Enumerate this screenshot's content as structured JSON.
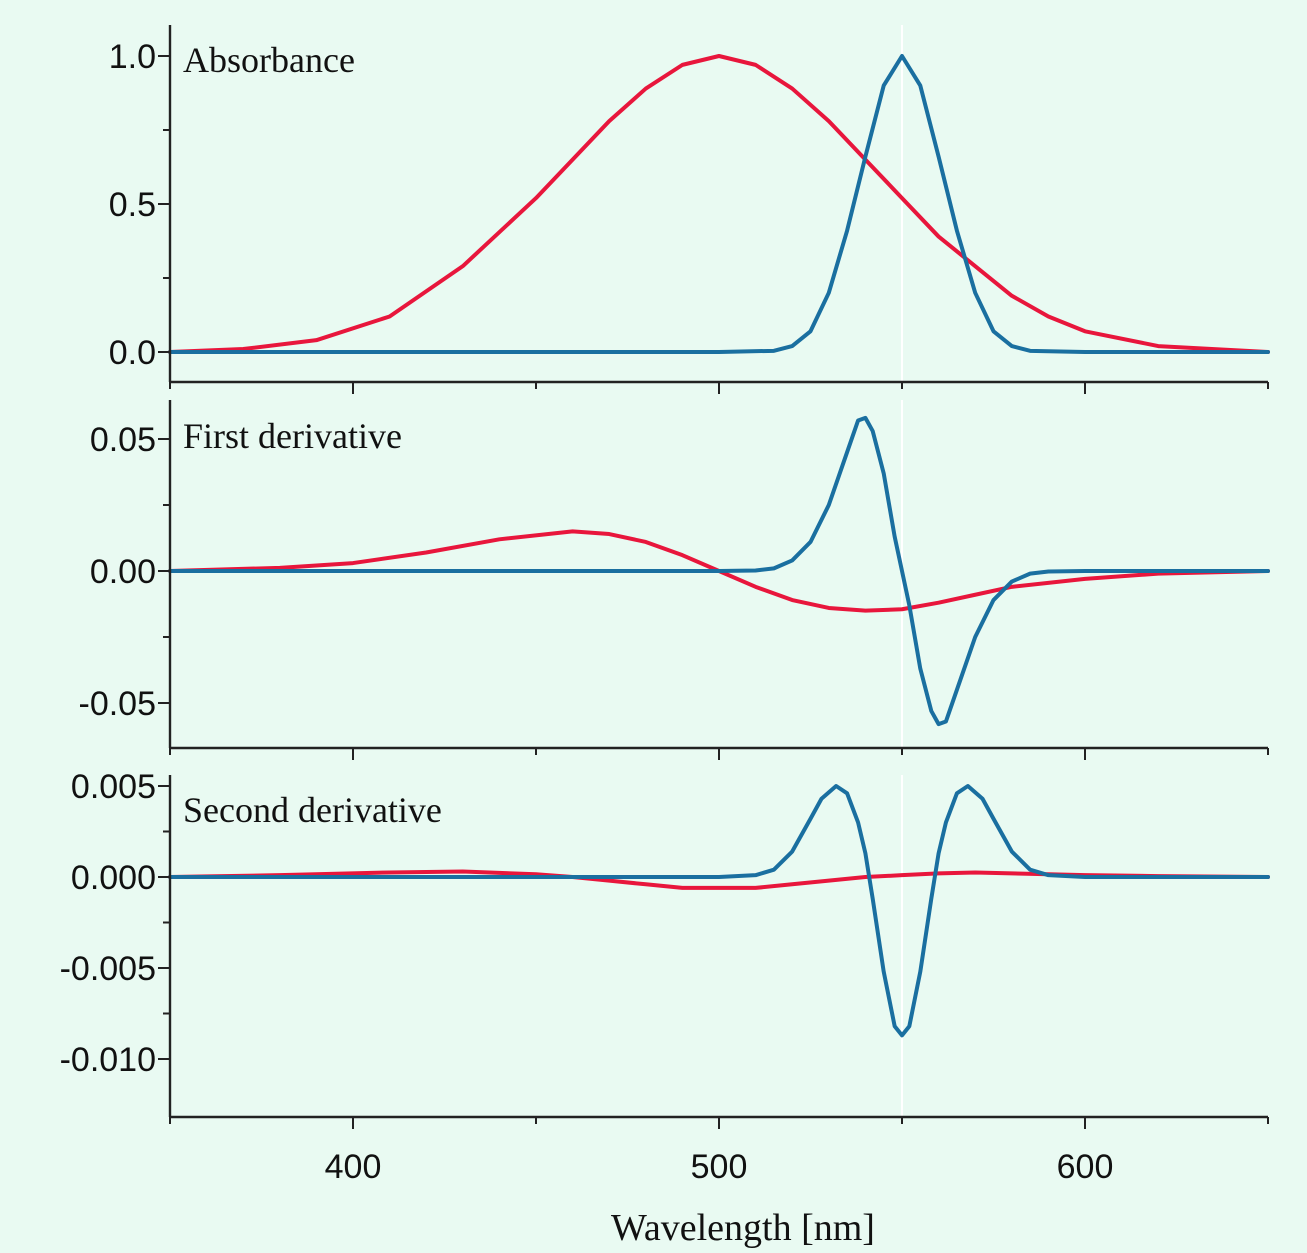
{
  "chart_data": {
    "type": "line",
    "xlabel": "Wavelength [nm]",
    "xlim": [
      350,
      650
    ],
    "x_ticks": [
      400,
      500,
      600
    ],
    "x_tick_labels": [
      "400",
      "500",
      "600"
    ],
    "x_minor_ticks": [
      350,
      400,
      450,
      500,
      550,
      600,
      650
    ],
    "guide_x": 550,
    "colors": {
      "red": "#e8163c",
      "blue": "#1a6fa0",
      "background": "#e9faf2"
    },
    "grid": false,
    "panels": [
      {
        "label": "Absorbance",
        "ylim": [
          -0.1,
          1.1
        ],
        "y_ticks": [
          0.0,
          0.5,
          1.0
        ],
        "y_tick_labels": [
          "0.0",
          "0.5",
          "1.0"
        ],
        "y_minor_ticks": [
          0.25,
          0.75
        ],
        "series": [
          {
            "color": "red",
            "x": [
              350,
              370,
              390,
              410,
              430,
              450,
              460,
              470,
              480,
              490,
              500,
              510,
              520,
              530,
              540,
              550,
              560,
              570,
              580,
              590,
              600,
              620,
              650
            ],
            "y": [
              0.0,
              0.01,
              0.04,
              0.12,
              0.29,
              0.52,
              0.65,
              0.78,
              0.89,
              0.97,
              1.0,
              0.97,
              0.89,
              0.78,
              0.65,
              0.52,
              0.39,
              0.29,
              0.19,
              0.12,
              0.07,
              0.02,
              0.0
            ]
          },
          {
            "color": "blue",
            "x": [
              350,
              400,
              450,
              500,
              515,
              520,
              525,
              530,
              535,
              540,
              545,
              550,
              555,
              560,
              565,
              570,
              575,
              580,
              585,
              600,
              650
            ],
            "y": [
              0.0,
              0.0,
              0.0,
              0.0,
              0.004,
              0.02,
              0.07,
              0.2,
              0.41,
              0.66,
              0.9,
              1.0,
              0.9,
              0.66,
              0.41,
              0.2,
              0.07,
              0.02,
              0.004,
              0.0,
              0.0
            ]
          }
        ]
      },
      {
        "label": "First derivative",
        "ylim": [
          -0.06,
          0.06
        ],
        "y_ticks": [
          -0.05,
          0.0,
          0.05
        ],
        "y_tick_labels": [
          "-0.05",
          "0.00",
          "0.05"
        ],
        "y_minor_ticks": [
          -0.025,
          0.025
        ],
        "series": [
          {
            "color": "red",
            "x": [
              350,
              380,
              400,
              420,
              440,
              460,
              470,
              480,
              490,
              500,
              510,
              520,
              530,
              540,
              550,
              560,
              570,
              580,
              600,
              620,
              650
            ],
            "y": [
              0.0,
              0.0012,
              0.003,
              0.007,
              0.012,
              0.015,
              0.014,
              0.011,
              0.006,
              0.0,
              -0.006,
              -0.011,
              -0.014,
              -0.015,
              -0.0145,
              -0.012,
              -0.009,
              -0.006,
              -0.003,
              -0.001,
              0.0
            ]
          },
          {
            "color": "blue",
            "x": [
              350,
              400,
              450,
              500,
              510,
              515,
              520,
              525,
              530,
              535,
              538,
              540,
              542,
              545,
              548,
              550,
              552,
              555,
              558,
              560,
              562,
              565,
              570,
              575,
              580,
              585,
              590,
              600,
              650
            ],
            "y": [
              0.0,
              0.0,
              0.0,
              0.0,
              0.0002,
              0.001,
              0.004,
              0.011,
              0.025,
              0.045,
              0.057,
              0.058,
              0.053,
              0.037,
              0.013,
              0.0,
              -0.013,
              -0.037,
              -0.053,
              -0.058,
              -0.057,
              -0.045,
              -0.025,
              -0.011,
              -0.004,
              -0.001,
              -0.0002,
              0.0,
              0.0
            ]
          }
        ]
      },
      {
        "label": "Second derivative",
        "ylim": [
          -0.0101,
          0.0055
        ],
        "y_ticks": [
          -0.01,
          -0.005,
          0.0,
          0.005
        ],
        "y_tick_labels": [
          "-0.010",
          "-0.005",
          "0.000",
          "0.005"
        ],
        "y_minor_ticks": [
          -0.0075,
          -0.0025,
          0.0025
        ],
        "series": [
          {
            "color": "red",
            "x": [
              350,
              380,
              410,
              430,
              450,
              460,
              470,
              480,
              490,
              500,
              510,
              520,
              530,
              540,
              550,
              560,
              570,
              580,
              590,
              600,
              620,
              650
            ],
            "y": [
              0.0,
              0.0001,
              0.00025,
              0.0003,
              0.00015,
              0.0,
              -0.0002,
              -0.0004,
              -0.0006,
              -0.0006,
              -0.0006,
              -0.0004,
              -0.0002,
              0.0,
              0.0001,
              0.0002,
              0.00025,
              0.0002,
              0.00015,
              0.0001,
              5e-05,
              0.0
            ]
          },
          {
            "color": "blue",
            "x": [
              350,
              400,
              450,
              500,
              510,
              515,
              520,
              525,
              528,
              532,
              535,
              538,
              540,
              542,
              545,
              548,
              550,
              552,
              555,
              558,
              560,
              562,
              565,
              568,
              572,
              575,
              580,
              585,
              590,
              600,
              650
            ],
            "y": [
              0.0,
              0.0,
              0.0,
              0.0,
              0.0001,
              0.0004,
              0.0014,
              0.0032,
              0.0043,
              0.005,
              0.0046,
              0.003,
              0.0013,
              -0.0012,
              -0.0052,
              -0.0082,
              -0.0087,
              -0.0082,
              -0.0052,
              -0.0012,
              0.0013,
              0.003,
              0.0046,
              0.005,
              0.0043,
              0.0032,
              0.0014,
              0.0004,
              0.0001,
              0.0,
              0.0
            ]
          }
        ]
      }
    ]
  }
}
